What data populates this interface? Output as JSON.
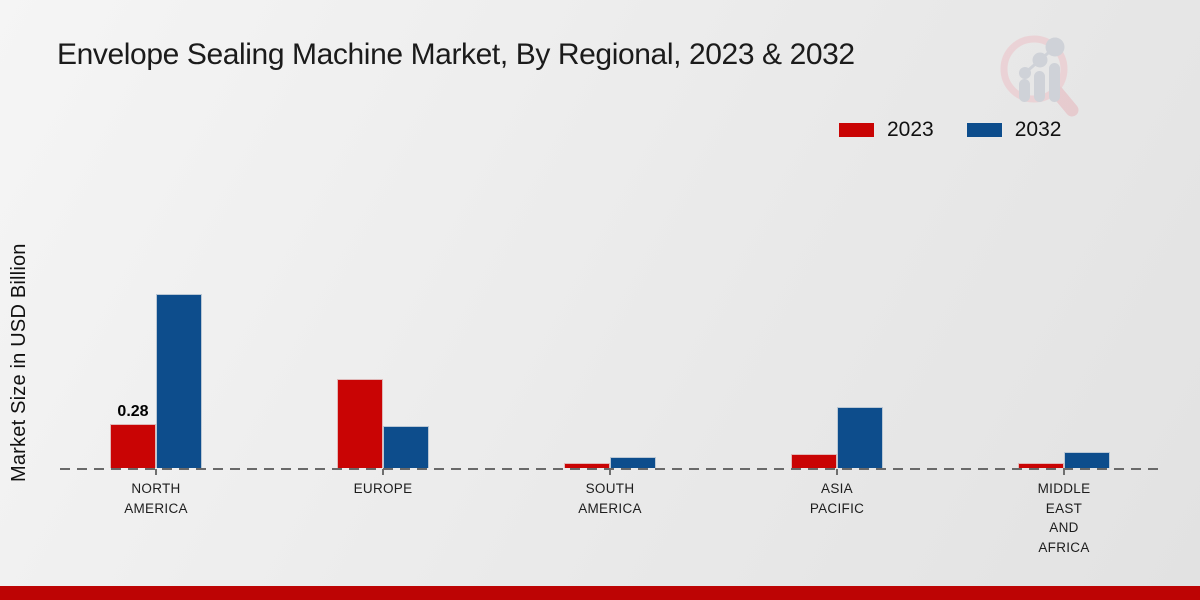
{
  "header": {
    "title": "Envelope Sealing Machine Market, By Regional, 2023 & 2032"
  },
  "axes": {
    "ylabel": "Market Size in USD Billion"
  },
  "legend": {
    "items": [
      {
        "label": "2023",
        "color": "#c90404"
      },
      {
        "label": "2032",
        "color": "#0d4d8c"
      }
    ]
  },
  "watermark": {
    "icon": "magnifier-bar-chart-logo-icon",
    "ring_color": "#ecccd0",
    "bars_color": "#c7cbd3"
  },
  "chart_data": {
    "type": "bar",
    "title": "Envelope Sealing Machine Market, By Regional, 2023 & 2032",
    "xlabel": "",
    "ylabel": "Market Size in USD Billion",
    "categories": [
      "NORTH AMERICA",
      "EUROPE",
      "SOUTH AMERICA",
      "ASIA PACIFIC",
      "MIDDLE EAST AND AFRICA"
    ],
    "category_display": [
      "NORTH\nAMERICA",
      "EUROPE",
      "SOUTH\nAMERICA",
      "ASIA\nPACIFIC",
      "MIDDLE\nEAST\nAND\nAFRICA"
    ],
    "series": [
      {
        "name": "2023",
        "color": "#c90404",
        "values": [
          0.28,
          0.57,
          0.03,
          0.09,
          0.03
        ]
      },
      {
        "name": "2032",
        "color": "#0d4d8c",
        "values": [
          1.11,
          0.27,
          0.07,
          0.39,
          0.1
        ]
      }
    ],
    "data_labels": [
      {
        "series": "2023",
        "category": "NORTH AMERICA",
        "text": "0.28"
      }
    ],
    "ylim": [
      0,
      1.2
    ],
    "grid": false,
    "legend_position": "top-right",
    "baseline_style": "dashed",
    "units": "USD Billion"
  },
  "footer": {
    "bar_color": "#bd0404"
  }
}
